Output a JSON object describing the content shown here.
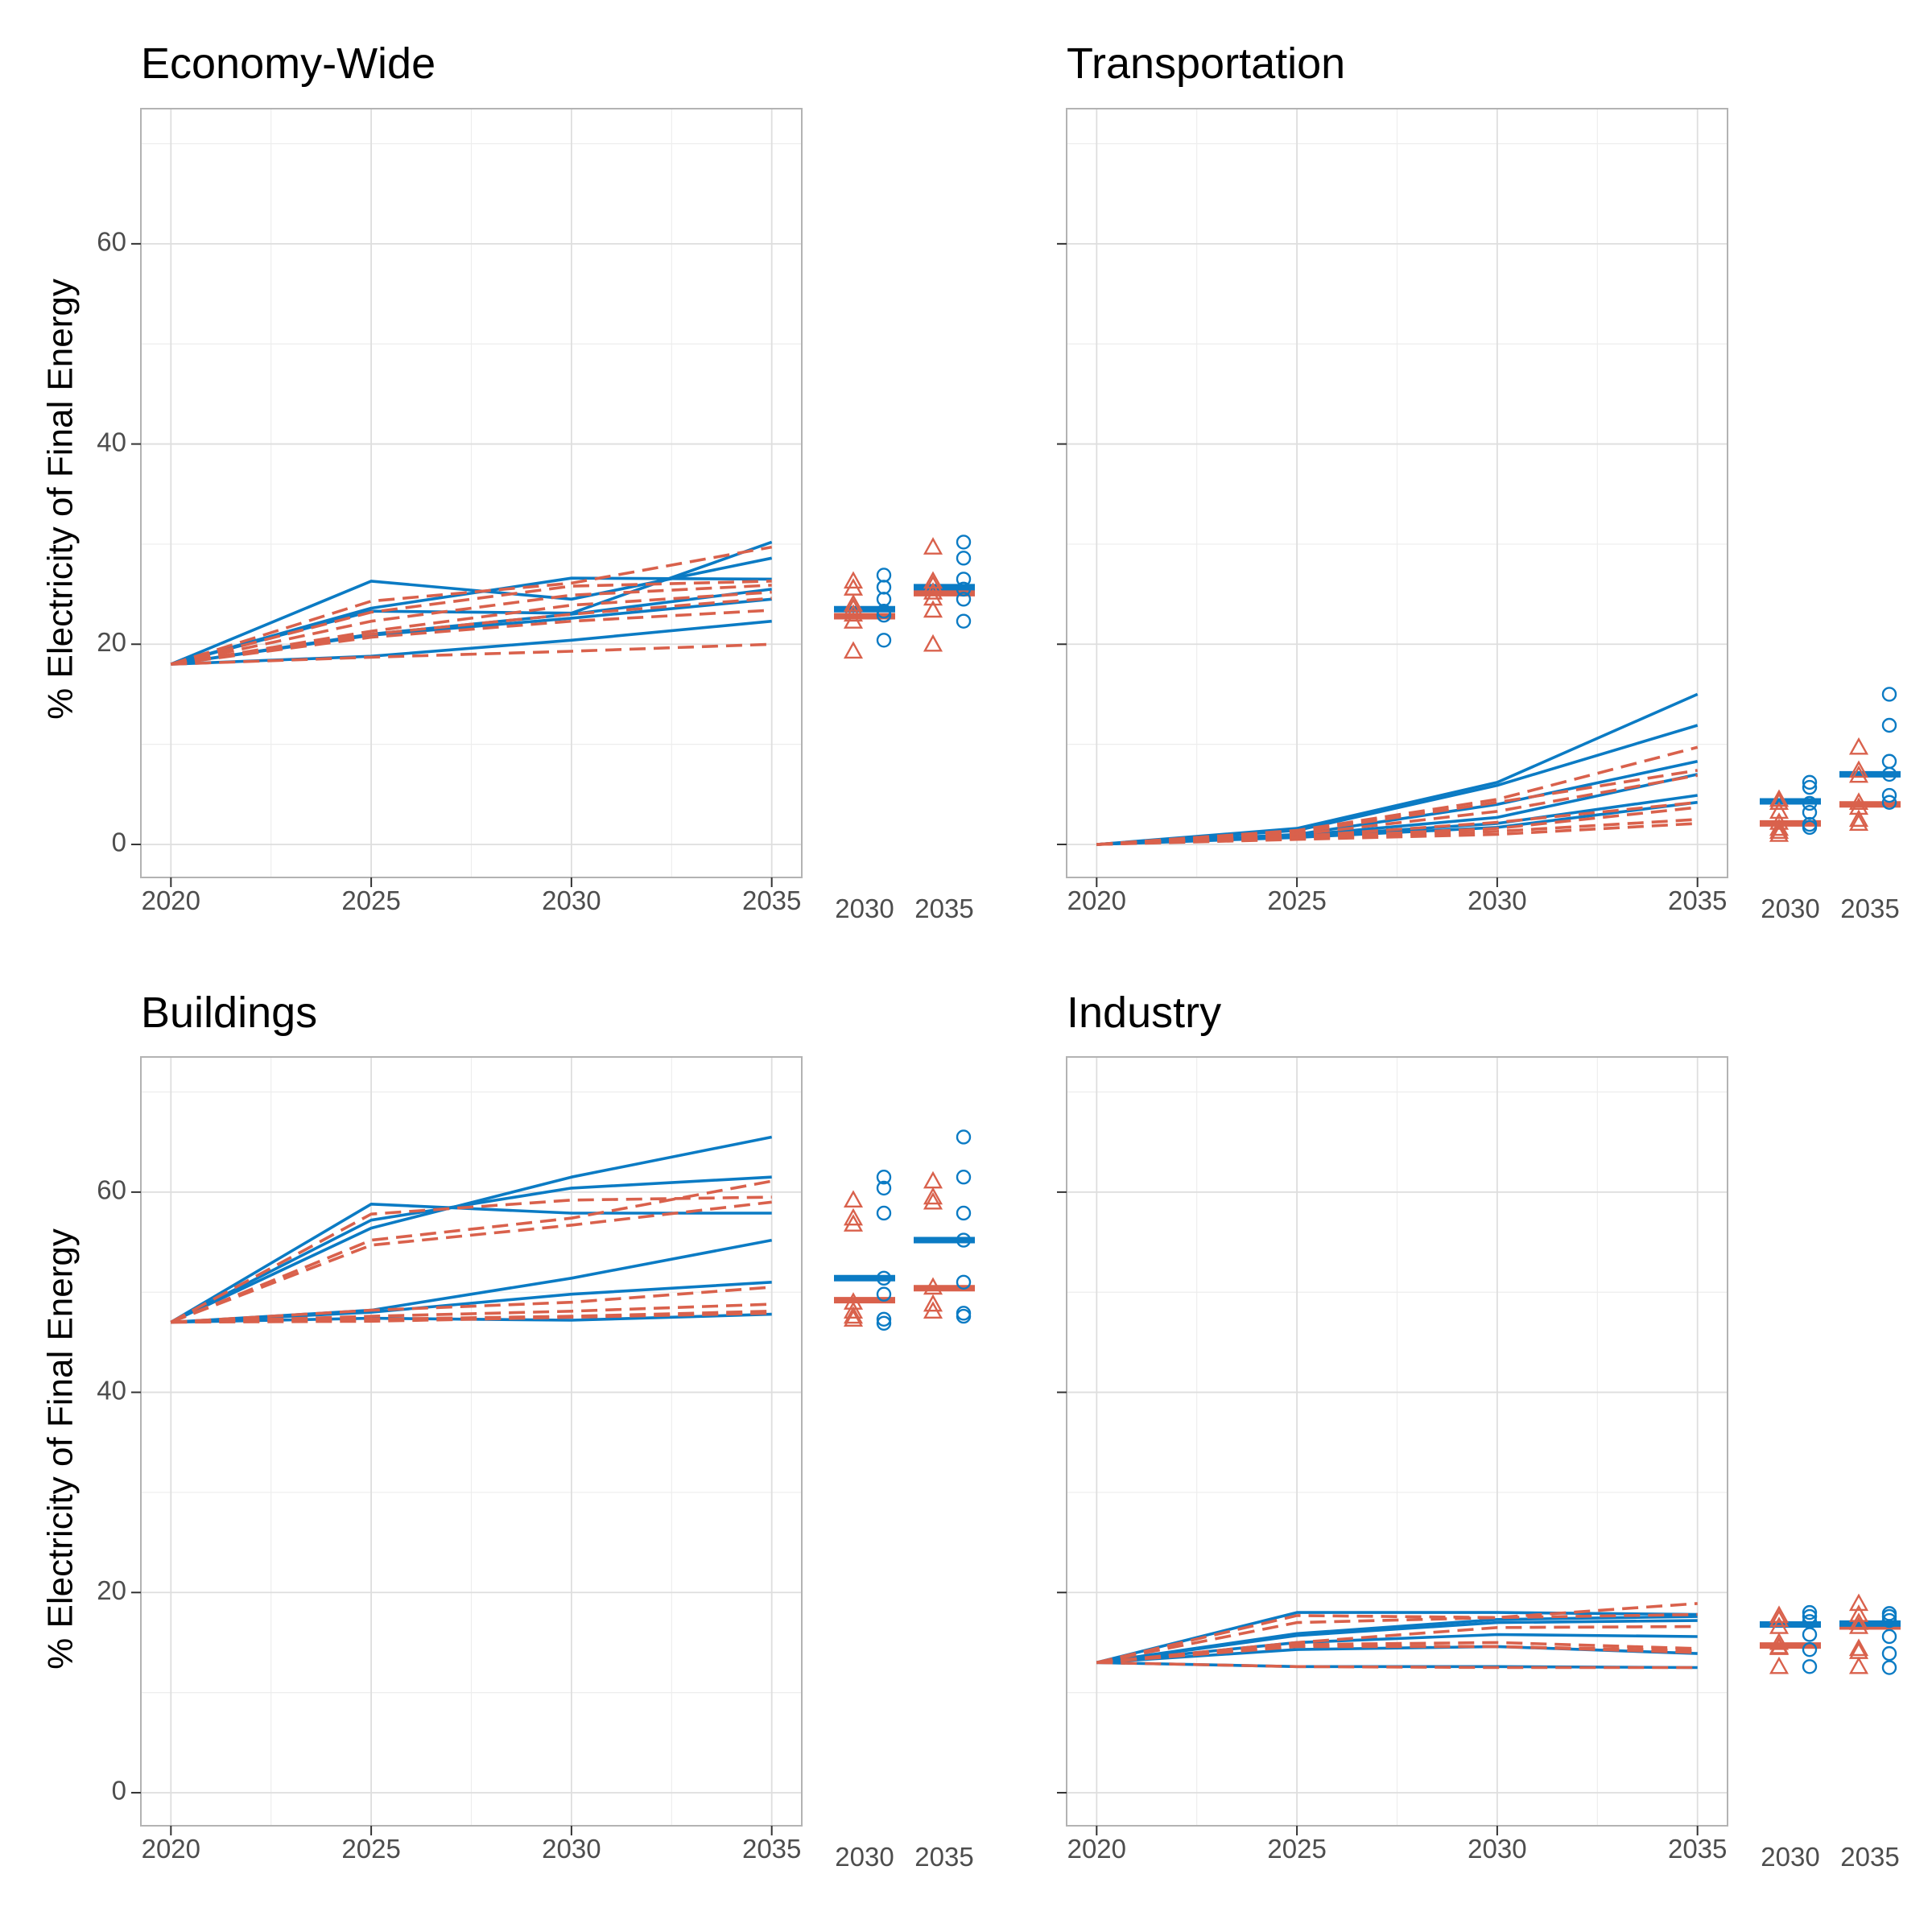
{
  "colors": {
    "blue": "#0b7bc4",
    "red": "#d9614c",
    "grid_major": "#dedede",
    "grid_minor": "#ededed",
    "frame": "#b3b3b3"
  },
  "chart_data": {
    "type": "line",
    "ylabel": "% Electricity of Final Energy",
    "ylim": [
      -3.3,
      73.5
    ],
    "x": [
      2020,
      2025,
      2030,
      2035
    ],
    "y_ticks": [
      0,
      20,
      40,
      60
    ],
    "side_categories": [
      "2030",
      "2035"
    ],
    "grid": true,
    "series_styles": {
      "blue": {
        "line": "solid",
        "marker": "circle"
      },
      "red": {
        "line": "dashed",
        "marker": "triangle"
      }
    },
    "panels": [
      {
        "title": "Economy-Wide",
        "blue": [
          [
            18,
            26.3,
            24.5,
            28.6
          ],
          [
            18,
            23.3,
            23.1,
            30.2
          ],
          [
            18,
            23.6,
            26.6,
            26.5
          ],
          [
            18,
            21.0,
            23.0,
            25.5
          ],
          [
            18,
            20.9,
            22.6,
            24.5
          ],
          [
            18,
            18.8,
            20.4,
            22.3
          ]
        ],
        "red": [
          [
            18,
            24.3,
            26.1,
            29.7
          ],
          [
            18,
            23.2,
            25.8,
            26.3
          ],
          [
            18,
            22.3,
            24.9,
            25.9
          ],
          [
            18,
            21.3,
            23.9,
            25.2
          ],
          [
            18,
            21.0,
            23.0,
            24.6
          ],
          [
            18,
            20.7,
            22.3,
            23.4
          ],
          [
            18,
            18.7,
            19.3,
            20.0
          ]
        ],
        "side": {
          "blue_points": [
            [
              26.9,
              25.7,
              24.5,
              23.3,
              22.9,
              20.4
            ],
            [
              30.2,
              28.6,
              26.5,
              25.5,
              24.5,
              22.3
            ]
          ],
          "red_points": [
            [
              26.3,
              25.6,
              24.0,
              23.6,
              23.0,
              22.3,
              19.3
            ],
            [
              29.7,
              26.3,
              25.9,
              25.2,
              24.6,
              23.4,
              20.0
            ]
          ],
          "blue_median": [
            23.5,
            25.7
          ],
          "red_median": [
            22.8,
            25.1
          ]
        }
      },
      {
        "title": "Transportation",
        "blue": [
          [
            0,
            1.6,
            6.2,
            15.0
          ],
          [
            0,
            1.4,
            5.9,
            11.9
          ],
          [
            0,
            1.0,
            4.0,
            8.3
          ],
          [
            0,
            0.9,
            2.7,
            7.0
          ],
          [
            0,
            0.8,
            2.1,
            4.9
          ],
          [
            0,
            0.7,
            1.7,
            4.2
          ]
        ],
        "red": [
          [
            0,
            1.4,
            4.5,
            9.7
          ],
          [
            0,
            1.2,
            4.2,
            7.4
          ],
          [
            0,
            1.0,
            3.3,
            6.9
          ],
          [
            0,
            0.8,
            2.2,
            4.2
          ],
          [
            0,
            0.7,
            1.6,
            3.7
          ],
          [
            0,
            0.6,
            1.3,
            2.5
          ],
          [
            0,
            0.5,
            1.0,
            2.1
          ]
        ],
        "side": {
          "blue_points": [
            [
              6.2,
              5.7,
              4.1,
              3.2,
              2.0,
              1.7
            ],
            [
              15.0,
              11.9,
              8.3,
              7.0,
              4.9,
              4.2
            ]
          ],
          "red_points": [
            [
              4.5,
              4.2,
              3.3,
              2.2,
              1.6,
              1.3,
              1.0
            ],
            [
              9.7,
              7.4,
              6.9,
              4.2,
              3.7,
              2.5,
              2.1
            ]
          ],
          "blue_median": [
            4.3,
            7.0
          ],
          "red_median": [
            2.1,
            4.0
          ]
        }
      },
      {
        "title": "Buildings",
        "blue": [
          [
            47,
            56.4,
            61.5,
            65.5
          ],
          [
            47,
            58.8,
            57.9,
            57.9
          ],
          [
            47,
            57.2,
            60.4,
            61.5
          ],
          [
            47,
            48.2,
            51.4,
            55.2
          ],
          [
            47,
            48.0,
            49.8,
            51.0
          ],
          [
            47,
            47.4,
            47.2,
            47.8
          ]
        ],
        "red": [
          [
            47,
            57.8,
            59.2,
            59.5
          ],
          [
            47,
            55.2,
            57.4,
            61.1
          ],
          [
            47,
            54.7,
            56.7,
            59.0
          ],
          [
            47,
            48.2,
            49.0,
            50.5
          ],
          [
            47,
            47.6,
            48.1,
            48.8
          ],
          [
            47,
            47.3,
            47.6,
            48.1
          ],
          [
            47,
            47.1,
            47.5,
            47.9
          ]
        ],
        "side": {
          "blue_points": [
            [
              61.5,
              60.4,
              57.9,
              51.4,
              49.8,
              47.3,
              46.9
            ],
            [
              65.5,
              61.5,
              57.9,
              55.2,
              51.0,
              47.9,
              47.6
            ]
          ],
          "red_points": [
            [
              59.2,
              57.4,
              56.8,
              49.0,
              48.1,
              47.6,
              47.3
            ],
            [
              61.1,
              59.5,
              59.0,
              50.5,
              48.8,
              48.1
            ]
          ],
          "blue_median": [
            51.4,
            55.2
          ],
          "red_median": [
            49.2,
            50.4
          ]
        }
      },
      {
        "title": "Industry",
        "blue": [
          [
            13,
            18.0,
            18.0,
            17.8
          ],
          [
            13,
            15.9,
            17.3,
            17.6
          ],
          [
            13,
            15.7,
            17.0,
            17.2
          ],
          [
            13,
            15.0,
            15.8,
            15.6
          ],
          [
            13,
            14.3,
            14.6,
            13.9
          ],
          [
            13,
            12.6,
            12.6,
            12.5
          ]
        ],
        "red": [
          [
            13,
            17.7,
            17.5,
            18.9
          ],
          [
            13,
            17.0,
            17.5,
            17.8
          ],
          [
            13,
            15.0,
            16.5,
            16.6
          ],
          [
            13,
            14.8,
            15.0,
            14.4
          ],
          [
            13,
            14.7,
            14.6,
            14.0
          ],
          [
            13,
            14.6,
            14.6,
            14.2
          ],
          [
            13,
            12.6,
            12.5,
            12.5
          ]
        ],
        "side": {
          "blue_points": [
            [
              18.0,
              17.6,
              17.1,
              15.8,
              14.3,
              12.6
            ],
            [
              17.9,
              17.6,
              17.2,
              15.6,
              13.9,
              12.5
            ]
          ],
          "red_points": [
            [
              17.7,
              17.3,
              16.6,
              15.0,
              14.6,
              14.5,
              12.6
            ],
            [
              18.9,
              17.8,
              17.0,
              16.6,
              14.4,
              14.1,
              12.6
            ]
          ],
          "blue_median": [
            16.8,
            16.9
          ],
          "red_median": [
            14.7,
            16.6
          ]
        }
      }
    ]
  }
}
